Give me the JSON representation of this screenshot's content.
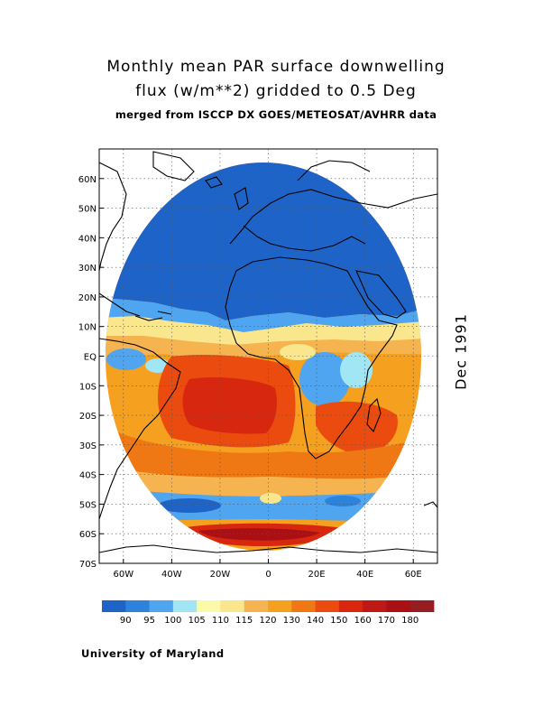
{
  "title": {
    "line1": "Monthly mean PAR surface downwelling",
    "line2": "flux (w/m**2) gridded to 0.5 Deg",
    "line3": "merged from ISCCP DX GOES/METEOSAT/AVHRR data"
  },
  "date_label": "Dec 1991",
  "credit": "University of Maryland",
  "map": {
    "lon_range": [
      -70,
      70
    ],
    "lat_range": [
      -70,
      70
    ],
    "lon_ticks": [
      {
        "value": -60,
        "label": "60W"
      },
      {
        "value": -40,
        "label": "40W"
      },
      {
        "value": -20,
        "label": "20W"
      },
      {
        "value": 0,
        "label": "0"
      },
      {
        "value": 20,
        "label": "20E"
      },
      {
        "value": 40,
        "label": "40E"
      },
      {
        "value": 60,
        "label": "60E"
      }
    ],
    "lat_ticks": [
      {
        "value": 60,
        "label": "60N"
      },
      {
        "value": 50,
        "label": "50N"
      },
      {
        "value": 40,
        "label": "40N"
      },
      {
        "value": 30,
        "label": "30N"
      },
      {
        "value": 20,
        "label": "20N"
      },
      {
        "value": 10,
        "label": "10N"
      },
      {
        "value": 0,
        "label": "EQ"
      },
      {
        "value": -10,
        "label": "10S"
      },
      {
        "value": -20,
        "label": "20S"
      },
      {
        "value": -30,
        "label": "30S"
      },
      {
        "value": -40,
        "label": "40S"
      },
      {
        "value": -50,
        "label": "50S"
      },
      {
        "value": -60,
        "label": "60S"
      },
      {
        "value": -70,
        "label": "70S"
      }
    ],
    "grid": true
  },
  "colorbar": {
    "colors": [
      "#1e64c8",
      "#2d82dc",
      "#50a5f0",
      "#a0e6f5",
      "#fafaaa",
      "#fae68c",
      "#f5b450",
      "#f5a01e",
      "#f07814",
      "#eb4b0f",
      "#d7280f",
      "#be1914",
      "#aa0f14",
      "#961e23"
    ],
    "labels": [
      "90",
      "95",
      "100",
      "105",
      "110",
      "115",
      "120",
      "130",
      "140",
      "150",
      "160",
      "170",
      "180"
    ]
  }
}
